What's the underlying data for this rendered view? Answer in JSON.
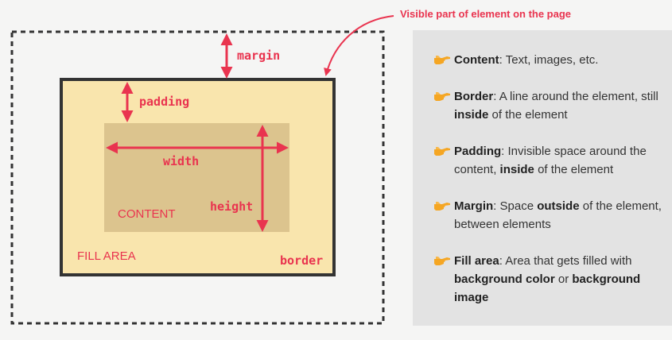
{
  "callout": {
    "text": "Visible part of element on the page",
    "color": "#e9344f"
  },
  "diagram": {
    "margin_label": "margin",
    "padding_label": "padding",
    "width_label": "width",
    "height_label": "height",
    "content_label": "CONTENT",
    "fill_area_label": "FILL AREA",
    "border_label": "border"
  },
  "colors": {
    "accent": "#e9344f",
    "fill": "#f9e5ad",
    "content": "#dcc48e",
    "border": "#333333",
    "panel": "#e3e3e3",
    "hand_icon": "#f5a623"
  },
  "items": [
    {
      "icon": "pointing-hand-icon",
      "term": "Content",
      "parts": [
        ": Text, images, etc."
      ]
    },
    {
      "icon": "pointing-hand-icon",
      "term": "Border",
      "parts": [
        ": A line around the element, still ",
        "inside",
        " of the element"
      ]
    },
    {
      "icon": "pointing-hand-icon",
      "term": "Padding",
      "parts": [
        ": Invisible space around the content, ",
        "inside",
        " of the element"
      ]
    },
    {
      "icon": "pointing-hand-icon",
      "term": "Margin",
      "parts": [
        ": Space ",
        "outside",
        " of the element, between elements"
      ]
    },
    {
      "icon": "pointing-hand-icon",
      "term": "Fill area",
      "parts": [
        ": Area that gets filled with ",
        "background color",
        " or ",
        "background image"
      ]
    }
  ]
}
